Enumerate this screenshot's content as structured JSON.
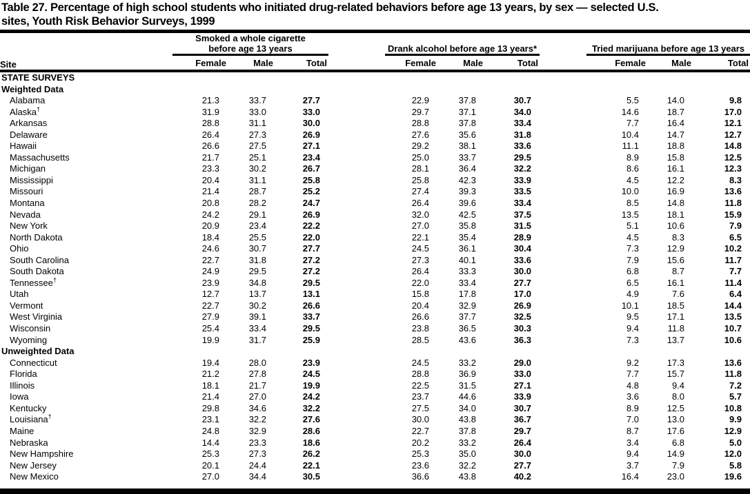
{
  "title": {
    "line1": "Table 27. Percentage of high school students who initiated drug-related behaviors before age 13 years, by sex — selected U.S.",
    "line2": "sites, Youth Risk Behavior Surveys, 1999"
  },
  "colors": {
    "text": "#000000",
    "background": "#ffffff"
  },
  "table": {
    "site_header": "Site",
    "col_keys": [
      "female",
      "male",
      "total"
    ],
    "groups": [
      {
        "key": "cigarette",
        "label_lines": [
          "Smoked a whole cigarette",
          "before age 13 years"
        ],
        "columns": [
          "Female",
          "Male",
          "Total"
        ]
      },
      {
        "key": "alcohol",
        "label_lines": [
          "Drank alcohol before age 13 years*"
        ],
        "columns": [
          "Female",
          "Male",
          "Total"
        ]
      },
      {
        "key": "marijuana",
        "label_lines": [
          "Tried marijuana before age 13 years"
        ],
        "columns": [
          "Female",
          "Male",
          "Total"
        ]
      }
    ],
    "section_heading": "STATE SURVEYS",
    "subsections": [
      {
        "label": "Weighted Data",
        "rows": [
          {
            "site": "Alabama",
            "cigarette": [
              "21.3",
              "33.7",
              "27.7"
            ],
            "alcohol": [
              "22.9",
              "37.8",
              "30.7"
            ],
            "marijuana": [
              "5.5",
              "14.0",
              "9.8"
            ]
          },
          {
            "site": "Alaska",
            "sup": "†",
            "cigarette": [
              "31.9",
              "33.0",
              "33.0"
            ],
            "alcohol": [
              "29.7",
              "37.1",
              "34.0"
            ],
            "marijuana": [
              "14.6",
              "18.7",
              "17.0"
            ]
          },
          {
            "site": "Arkansas",
            "cigarette": [
              "28.8",
              "31.1",
              "30.0"
            ],
            "alcohol": [
              "28.8",
              "37.8",
              "33.4"
            ],
            "marijuana": [
              "7.7",
              "16.4",
              "12.1"
            ]
          },
          {
            "site": "Delaware",
            "cigarette": [
              "26.4",
              "27.3",
              "26.9"
            ],
            "alcohol": [
              "27.6",
              "35.6",
              "31.8"
            ],
            "marijuana": [
              "10.4",
              "14.7",
              "12.7"
            ]
          },
          {
            "site": "Hawaii",
            "cigarette": [
              "26.6",
              "27.5",
              "27.1"
            ],
            "alcohol": [
              "29.2",
              "38.1",
              "33.6"
            ],
            "marijuana": [
              "11.1",
              "18.8",
              "14.8"
            ]
          },
          {
            "site": "Massachusetts",
            "cigarette": [
              "21.7",
              "25.1",
              "23.4"
            ],
            "alcohol": [
              "25.0",
              "33.7",
              "29.5"
            ],
            "marijuana": [
              "8.9",
              "15.8",
              "12.5"
            ]
          },
          {
            "site": "Michigan",
            "cigarette": [
              "23.3",
              "30.2",
              "26.7"
            ],
            "alcohol": [
              "28.1",
              "36.4",
              "32.2"
            ],
            "marijuana": [
              "8.6",
              "16.1",
              "12.3"
            ]
          },
          {
            "site": "Mississippi",
            "cigarette": [
              "20.4",
              "31.1",
              "25.8"
            ],
            "alcohol": [
              "25.8",
              "42.3",
              "33.9"
            ],
            "marijuana": [
              "4.5",
              "12.2",
              "8.3"
            ]
          },
          {
            "site": "Missouri",
            "cigarette": [
              "21.4",
              "28.7",
              "25.2"
            ],
            "alcohol": [
              "27.4",
              "39.3",
              "33.5"
            ],
            "marijuana": [
              "10.0",
              "16.9",
              "13.6"
            ]
          },
          {
            "site": "Montana",
            "cigarette": [
              "20.8",
              "28.2",
              "24.7"
            ],
            "alcohol": [
              "26.4",
              "39.6",
              "33.4"
            ],
            "marijuana": [
              "8.5",
              "14.8",
              "11.8"
            ]
          },
          {
            "site": "Nevada",
            "cigarette": [
              "24.2",
              "29.1",
              "26.9"
            ],
            "alcohol": [
              "32.0",
              "42.5",
              "37.5"
            ],
            "marijuana": [
              "13.5",
              "18.1",
              "15.9"
            ]
          },
          {
            "site": "New York",
            "cigarette": [
              "20.9",
              "23.4",
              "22.2"
            ],
            "alcohol": [
              "27.0",
              "35.8",
              "31.5"
            ],
            "marijuana": [
              "5.1",
              "10.6",
              "7.9"
            ]
          },
          {
            "site": "North Dakota",
            "cigarette": [
              "18.4",
              "25.5",
              "22.0"
            ],
            "alcohol": [
              "22.1",
              "35.4",
              "28.9"
            ],
            "marijuana": [
              "4.5",
              "8.3",
              "6.5"
            ]
          },
          {
            "site": "Ohio",
            "cigarette": [
              "24.6",
              "30.7",
              "27.7"
            ],
            "alcohol": [
              "24.5",
              "36.1",
              "30.4"
            ],
            "marijuana": [
              "7.3",
              "12.9",
              "10.2"
            ]
          },
          {
            "site": "South Carolina",
            "cigarette": [
              "22.7",
              "31.8",
              "27.2"
            ],
            "alcohol": [
              "27.3",
              "40.1",
              "33.6"
            ],
            "marijuana": [
              "7.9",
              "15.6",
              "11.7"
            ]
          },
          {
            "site": "South Dakota",
            "cigarette": [
              "24.9",
              "29.5",
              "27.2"
            ],
            "alcohol": [
              "26.4",
              "33.3",
              "30.0"
            ],
            "marijuana": [
              "6.8",
              "8.7",
              "7.7"
            ]
          },
          {
            "site": "Tennessee",
            "sup": "†",
            "cigarette": [
              "23.9",
              "34.8",
              "29.5"
            ],
            "alcohol": [
              "22.0",
              "33.4",
              "27.7"
            ],
            "marijuana": [
              "6.5",
              "16.1",
              "11.4"
            ]
          },
          {
            "site": "Utah",
            "cigarette": [
              "12.7",
              "13.7",
              "13.1"
            ],
            "alcohol": [
              "15.8",
              "17.8",
              "17.0"
            ],
            "marijuana": [
              "4.9",
              "7.6",
              "6.4"
            ]
          },
          {
            "site": "Vermont",
            "cigarette": [
              "22.7",
              "30.2",
              "26.6"
            ],
            "alcohol": [
              "20.4",
              "32.9",
              "26.9"
            ],
            "marijuana": [
              "10.1",
              "18.5",
              "14.4"
            ]
          },
          {
            "site": "West Virginia",
            "cigarette": [
              "27.9",
              "39.1",
              "33.7"
            ],
            "alcohol": [
              "26.6",
              "37.7",
              "32.5"
            ],
            "marijuana": [
              "9.5",
              "17.1",
              "13.5"
            ]
          },
          {
            "site": "Wisconsin",
            "cigarette": [
              "25.4",
              "33.4",
              "29.5"
            ],
            "alcohol": [
              "23.8",
              "36.5",
              "30.3"
            ],
            "marijuana": [
              "9.4",
              "11.8",
              "10.7"
            ]
          },
          {
            "site": "Wyoming",
            "cigarette": [
              "19.9",
              "31.7",
              "25.9"
            ],
            "alcohol": [
              "28.5",
              "43.6",
              "36.3"
            ],
            "marijuana": [
              "7.3",
              "13.7",
              "10.6"
            ]
          }
        ]
      },
      {
        "label": "Unweighted Data",
        "rows": [
          {
            "site": "Connecticut",
            "cigarette": [
              "19.4",
              "28.0",
              "23.9"
            ],
            "alcohol": [
              "24.5",
              "33.2",
              "29.0"
            ],
            "marijuana": [
              "9.2",
              "17.3",
              "13.6"
            ]
          },
          {
            "site": "Florida",
            "cigarette": [
              "21.2",
              "27.8",
              "24.5"
            ],
            "alcohol": [
              "28.8",
              "36.9",
              "33.0"
            ],
            "marijuana": [
              "7.7",
              "15.7",
              "11.8"
            ]
          },
          {
            "site": "Illinois",
            "cigarette": [
              "18.1",
              "21.7",
              "19.9"
            ],
            "alcohol": [
              "22.5",
              "31.5",
              "27.1"
            ],
            "marijuana": [
              "4.8",
              "9.4",
              "7.2"
            ]
          },
          {
            "site": "Iowa",
            "cigarette": [
              "21.4",
              "27.0",
              "24.2"
            ],
            "alcohol": [
              "23.7",
              "44.6",
              "33.9"
            ],
            "marijuana": [
              "3.6",
              "8.0",
              "5.7"
            ]
          },
          {
            "site": "Kentucky",
            "cigarette": [
              "29.8",
              "34.6",
              "32.2"
            ],
            "alcohol": [
              "27.5",
              "34.0",
              "30.7"
            ],
            "marijuana": [
              "8.9",
              "12.5",
              "10.8"
            ]
          },
          {
            "site": "Louisiana",
            "sup": "†",
            "cigarette": [
              "23.1",
              "32.2",
              "27.6"
            ],
            "alcohol": [
              "30.0",
              "43.8",
              "36.7"
            ],
            "marijuana": [
              "7.0",
              "13.0",
              "9.9"
            ]
          },
          {
            "site": "Maine",
            "cigarette": [
              "24.8",
              "32.9",
              "28.6"
            ],
            "alcohol": [
              "22.7",
              "37.8",
              "29.7"
            ],
            "marijuana": [
              "8.7",
              "17.6",
              "12.9"
            ]
          },
          {
            "site": "Nebraska",
            "cigarette": [
              "14.4",
              "23.3",
              "18.6"
            ],
            "alcohol": [
              "20.2",
              "33.2",
              "26.4"
            ],
            "marijuana": [
              "3.4",
              "6.8",
              "5.0"
            ]
          },
          {
            "site": "New Hampshire",
            "cigarette": [
              "25.3",
              "27.3",
              "26.2"
            ],
            "alcohol": [
              "25.3",
              "35.0",
              "30.0"
            ],
            "marijuana": [
              "9.4",
              "14.9",
              "12.0"
            ]
          },
          {
            "site": "New Jersey",
            "cigarette": [
              "20.1",
              "24.4",
              "22.1"
            ],
            "alcohol": [
              "23.6",
              "32.2",
              "27.7"
            ],
            "marijuana": [
              "3.7",
              "7.9",
              "5.8"
            ]
          },
          {
            "site": "New Mexico",
            "cigarette": [
              "27.0",
              "34.4",
              "30.5"
            ],
            "alcohol": [
              "36.6",
              "43.8",
              "40.2"
            ],
            "marijuana": [
              "16.4",
              "23.0",
              "19.6"
            ]
          }
        ]
      }
    ]
  }
}
